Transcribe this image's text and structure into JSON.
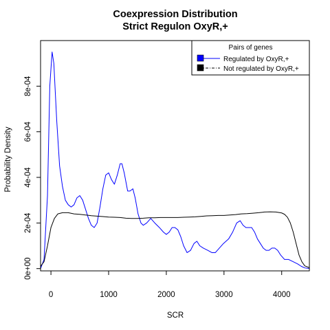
{
  "chart_data": {
    "type": "line",
    "title_line1": "Coexpression Distribution",
    "title_line2": "Strict Regulon OxyR,+",
    "xlabel": "SCR",
    "ylabel": "Probability Density",
    "xlim": [
      -180,
      4480
    ],
    "ylim": [
      -1e-05,
      0.001
    ],
    "x_ticks": [
      0,
      1000,
      2000,
      3000,
      4000
    ],
    "x_tick_labels": [
      "0",
      "1000",
      "2000",
      "3000",
      "4000"
    ],
    "y_ticks": [
      0,
      0.0002,
      0.0004,
      0.0006,
      0.0008
    ],
    "y_tick_labels": [
      "0e+00",
      "2e-04",
      "4e-04",
      "6e-04",
      "8e-04"
    ],
    "legend": {
      "title": "Pairs of genes",
      "position": "top-right",
      "entries": [
        "Regulated by OxyR,+",
        "Not regulated by OxyR,+"
      ]
    },
    "series": [
      {
        "name": "Regulated by OxyR,+",
        "color": "#0000ff",
        "points": [
          [
            -180,
            0.0
          ],
          [
            -120,
            4e-05
          ],
          [
            -60,
            0.00032
          ],
          [
            -20,
            0.0008
          ],
          [
            20,
            0.00095
          ],
          [
            50,
            0.0009
          ],
          [
            100,
            0.00065
          ],
          [
            150,
            0.00045
          ],
          [
            200,
            0.00036
          ],
          [
            250,
            0.0003
          ],
          [
            300,
            0.00028
          ],
          [
            350,
            0.00027
          ],
          [
            400,
            0.00028
          ],
          [
            450,
            0.00031
          ],
          [
            500,
            0.00032
          ],
          [
            550,
            0.0003
          ],
          [
            600,
            0.00026
          ],
          [
            650,
            0.00022
          ],
          [
            700,
            0.00019
          ],
          [
            750,
            0.00018
          ],
          [
            800,
            0.0002
          ],
          [
            850,
            0.00027
          ],
          [
            900,
            0.00035
          ],
          [
            950,
            0.00041
          ],
          [
            1000,
            0.00042
          ],
          [
            1050,
            0.00039
          ],
          [
            1100,
            0.00037
          ],
          [
            1150,
            0.00041
          ],
          [
            1200,
            0.00046
          ],
          [
            1230,
            0.00046
          ],
          [
            1270,
            0.00042
          ],
          [
            1300,
            0.00038
          ],
          [
            1330,
            0.00034
          ],
          [
            1370,
            0.00034
          ],
          [
            1420,
            0.00035
          ],
          [
            1460,
            0.00031
          ],
          [
            1510,
            0.00024
          ],
          [
            1560,
            0.0002
          ],
          [
            1600,
            0.00019
          ],
          [
            1660,
            0.0002
          ],
          [
            1730,
            0.00022
          ],
          [
            1800,
            0.0002
          ],
          [
            1880,
            0.00018
          ],
          [
            1950,
            0.00016
          ],
          [
            2000,
            0.00015
          ],
          [
            2050,
            0.00016
          ],
          [
            2100,
            0.00018
          ],
          [
            2150,
            0.00018
          ],
          [
            2200,
            0.00017
          ],
          [
            2250,
            0.00014
          ],
          [
            2300,
            0.0001
          ],
          [
            2360,
            7e-05
          ],
          [
            2420,
            8e-05
          ],
          [
            2480,
            0.00011
          ],
          [
            2530,
            0.00012
          ],
          [
            2580,
            0.0001
          ],
          [
            2640,
            9e-05
          ],
          [
            2720,
            8e-05
          ],
          [
            2790,
            7e-05
          ],
          [
            2850,
            7e-05
          ],
          [
            2920,
            9e-05
          ],
          [
            2990,
            0.00011
          ],
          [
            3080,
            0.00013
          ],
          [
            3150,
            0.00016
          ],
          [
            3220,
            0.0002
          ],
          [
            3280,
            0.00021
          ],
          [
            3330,
            0.00019
          ],
          [
            3380,
            0.00018
          ],
          [
            3430,
            0.00018
          ],
          [
            3480,
            0.00018
          ],
          [
            3530,
            0.00016
          ],
          [
            3580,
            0.00013
          ],
          [
            3630,
            0.00011
          ],
          [
            3680,
            9e-05
          ],
          [
            3730,
            8e-05
          ],
          [
            3780,
            8e-05
          ],
          [
            3830,
            9e-05
          ],
          [
            3880,
            9e-05
          ],
          [
            3930,
            8e-05
          ],
          [
            3980,
            6e-05
          ],
          [
            4050,
            4e-05
          ],
          [
            4120,
            4e-05
          ],
          [
            4200,
            3e-05
          ],
          [
            4280,
            2e-05
          ],
          [
            4340,
            1e-05
          ],
          [
            4400,
            3e-06
          ],
          [
            4480,
            0.0
          ]
        ]
      },
      {
        "name": "Not regulated by OxyR,+",
        "color": "#000000",
        "points": [
          [
            -180,
            1e-05
          ],
          [
            -120,
            3e-05
          ],
          [
            -60,
            0.0001
          ],
          [
            0,
            0.00018
          ],
          [
            60,
            0.00022
          ],
          [
            120,
            0.00024
          ],
          [
            200,
            0.000245
          ],
          [
            300,
            0.000245
          ],
          [
            400,
            0.00024
          ],
          [
            500,
            0.000238
          ],
          [
            600,
            0.000235
          ],
          [
            700,
            0.000232
          ],
          [
            800,
            0.00023
          ],
          [
            900,
            0.000228
          ],
          [
            1000,
            0.000226
          ],
          [
            1100,
            0.000225
          ],
          [
            1200,
            0.000224
          ],
          [
            1300,
            0.000221
          ],
          [
            1400,
            0.00022
          ],
          [
            1500,
            0.00022
          ],
          [
            1600,
            0.000221
          ],
          [
            1700,
            0.000223
          ],
          [
            1800,
            0.000223
          ],
          [
            1900,
            0.000224
          ],
          [
            2000,
            0.000224
          ],
          [
            2100,
            0.000224
          ],
          [
            2200,
            0.000224
          ],
          [
            2300,
            0.000225
          ],
          [
            2400,
            0.000226
          ],
          [
            2500,
            0.000227
          ],
          [
            2600,
            0.000229
          ],
          [
            2700,
            0.000231
          ],
          [
            2800,
            0.000232
          ],
          [
            2900,
            0.000233
          ],
          [
            3000,
            0.000233
          ],
          [
            3100,
            0.000235
          ],
          [
            3200,
            0.000237
          ],
          [
            3300,
            0.00024
          ],
          [
            3400,
            0.000241
          ],
          [
            3500,
            0.000243
          ],
          [
            3600,
            0.000245
          ],
          [
            3700,
            0.000248
          ],
          [
            3800,
            0.000249
          ],
          [
            3900,
            0.000248
          ],
          [
            4000,
            0.000244
          ],
          [
            4050,
            0.000238
          ],
          [
            4100,
            0.000225
          ],
          [
            4150,
            0.0002
          ],
          [
            4200,
            0.00016
          ],
          [
            4250,
            0.00011
          ],
          [
            4300,
            6e-05
          ],
          [
            4350,
            3e-05
          ],
          [
            4400,
            1.2e-05
          ],
          [
            4480,
            4e-06
          ]
        ]
      }
    ]
  }
}
